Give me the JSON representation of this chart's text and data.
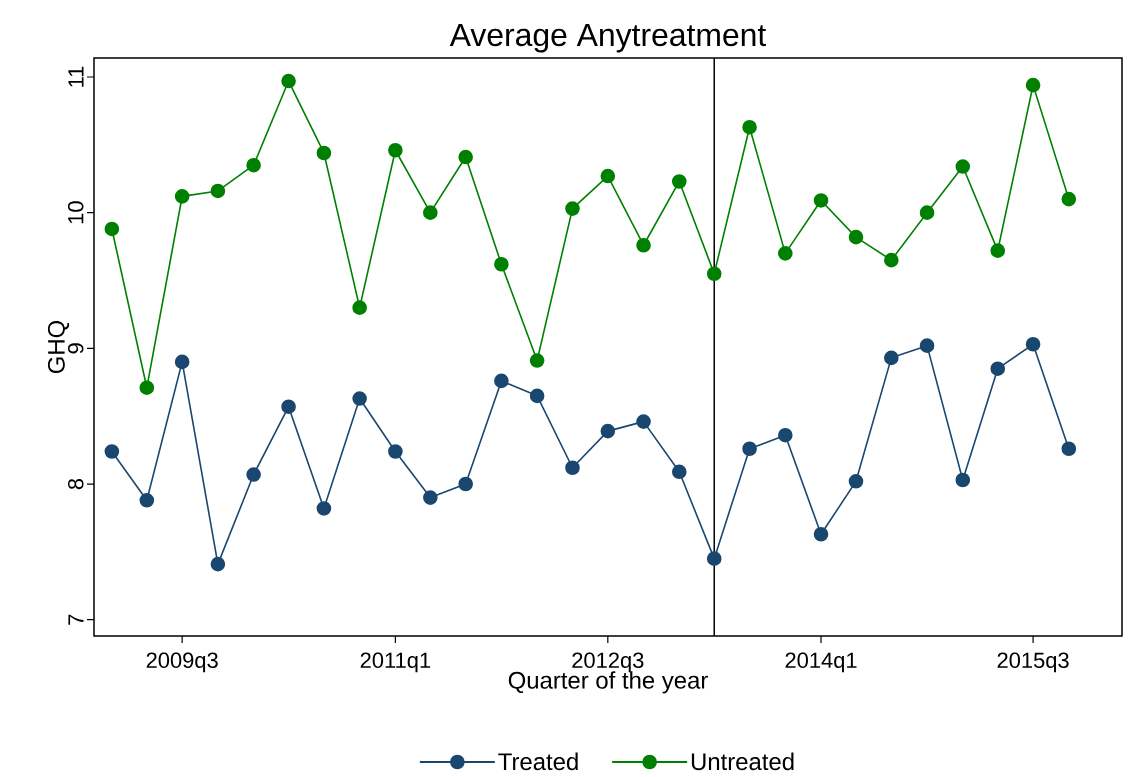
{
  "chart_data": {
    "type": "line",
    "title": "Average Anytreatment",
    "xlabel": "Quarter of the year",
    "ylabel": "GHQ",
    "x": [
      "2009-01",
      "2009-04",
      "2009-07",
      "2009-10",
      "2010-01",
      "2010-04",
      "2010-07",
      "2010-10",
      "2011-01",
      "2011-04",
      "2011-07",
      "2011-10",
      "2012-01",
      "2012-04",
      "2012-07",
      "2012-10",
      "2013-01",
      "2013-04",
      "2013-07",
      "2013-10",
      "2014-01",
      "2014-04",
      "2014-07",
      "2014-10",
      "2015-01",
      "2015-04",
      "2015-07",
      "2015-10"
    ],
    "series": [
      {
        "name": "Treated",
        "color": "#1a476f",
        "values": [
          8.24,
          7.88,
          8.9,
          7.41,
          8.07,
          8.57,
          7.82,
          8.63,
          8.24,
          7.9,
          8.0,
          8.76,
          8.65,
          8.12,
          8.39,
          8.46,
          8.09,
          7.45,
          8.26,
          8.36,
          7.63,
          8.02,
          8.93,
          9.02,
          8.03,
          8.85,
          9.03,
          8.26
        ]
      },
      {
        "name": "Untreated",
        "color": "#008000",
        "values": [
          9.88,
          8.71,
          10.12,
          10.16,
          10.35,
          10.97,
          10.44,
          9.3,
          10.46,
          10.0,
          10.41,
          9.62,
          8.91,
          10.03,
          10.27,
          9.76,
          10.23,
          9.55,
          10.63,
          9.7,
          10.09,
          9.82,
          9.65,
          10.0,
          10.34,
          9.72,
          10.94,
          10.1
        ]
      }
    ],
    "xlim": [
      "2008-11-16",
      "2016-02-15"
    ],
    "ylim": [
      6.88,
      11.14
    ],
    "xticks": [
      {
        "value": "2009-07",
        "label": "2009q3"
      },
      {
        "value": "2011-01",
        "label": "2011q1"
      },
      {
        "value": "2012-07",
        "label": "2012q3"
      },
      {
        "value": "2014-01",
        "label": "2014q1"
      },
      {
        "value": "2015-07",
        "label": "2015q3"
      }
    ],
    "yticks": [
      7,
      8,
      9,
      10,
      11
    ],
    "ref_lines": [
      {
        "axis": "x",
        "value": "2013-04",
        "color": "#000000"
      }
    ],
    "grid": false,
    "legend": "bottom",
    "marker": "circle",
    "line_style": "solid"
  }
}
